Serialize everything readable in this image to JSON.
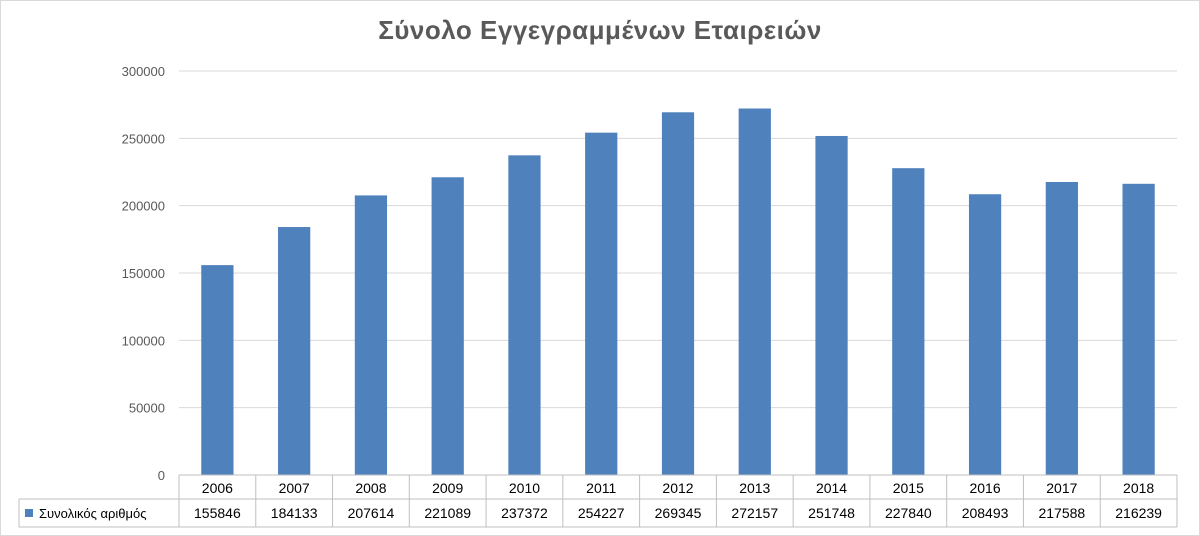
{
  "chart_data": {
    "type": "bar",
    "title": "Σύνολο Εγγεγραμμένων Εταιρειών",
    "xlabel": "",
    "ylabel": "",
    "categories": [
      "2006",
      "2007",
      "2008",
      "2009",
      "2010",
      "2011",
      "2012",
      "2013",
      "2014",
      "2015",
      "2016",
      "2017",
      "2018"
    ],
    "series": [
      {
        "name": "Συνολικός αριθμός",
        "values": [
          155846,
          184133,
          207614,
          221089,
          237372,
          254227,
          269345,
          272157,
          251748,
          227840,
          208493,
          217588,
          216239
        ],
        "color": "#4f81bd"
      }
    ],
    "ylim": [
      0,
      300000
    ],
    "yticks": [
      "0",
      "50000",
      "100000",
      "150000",
      "200000",
      "250000",
      "300000"
    ],
    "grid": true,
    "legend": "data-table"
  }
}
